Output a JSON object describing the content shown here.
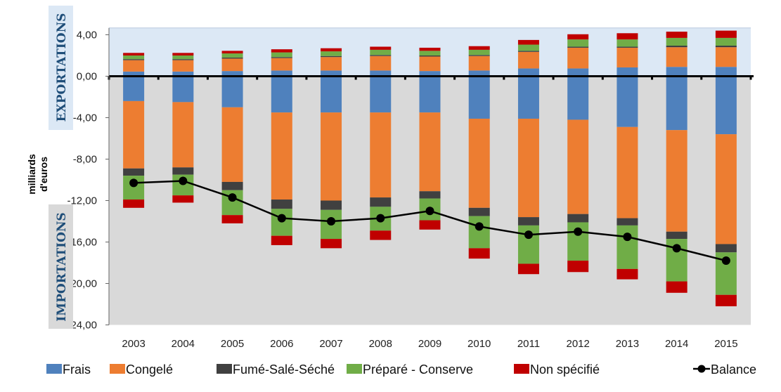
{
  "chart_data": {
    "type": "bar",
    "ylabel": [
      "milliards",
      "d'euros"
    ],
    "side_labels": {
      "top": "EXPORTATIONS",
      "bottom": "IMPORTATIONS"
    },
    "ylim": [
      -24,
      5
    ],
    "yticks": [
      {
        "v": 4,
        "label": "4,00"
      },
      {
        "v": 0,
        "label": "0,00"
      },
      {
        "v": -4,
        "label": "-4,00"
      },
      {
        "v": -8,
        "label": "-8,00"
      },
      {
        "v": -12,
        "label": "-12,00"
      },
      {
        "v": -16,
        "label": "-16,00"
      },
      {
        "v": -20,
        "label": "-20,00"
      },
      {
        "v": -24,
        "label": "-24,00"
      }
    ],
    "categories": [
      "2003",
      "2004",
      "2005",
      "2006",
      "2007",
      "2008",
      "2009",
      "2010",
      "2011",
      "2012",
      "2013",
      "2014",
      "2015"
    ],
    "series": [
      {
        "name": "Frais",
        "color": "#4f81bd",
        "exports": [
          0.45,
          0.45,
          0.5,
          0.55,
          0.55,
          0.55,
          0.5,
          0.55,
          0.75,
          0.75,
          0.85,
          0.9,
          0.9
        ],
        "imports": [
          2.4,
          2.5,
          3.0,
          3.5,
          3.5,
          3.5,
          3.5,
          4.1,
          4.1,
          4.2,
          4.9,
          5.2,
          5.6
        ]
      },
      {
        "name": "Congelé",
        "color": "#ed7d31",
        "exports": [
          1.1,
          1.1,
          1.2,
          1.2,
          1.3,
          1.4,
          1.4,
          1.4,
          1.6,
          2.0,
          1.9,
          1.9,
          1.9
        ]
      },
      {
        "name": "Fumé-Salé-Séché",
        "color": "#404040",
        "exports": [
          0.1,
          0.1,
          0.1,
          0.1,
          0.1,
          0.1,
          0.1,
          0.1,
          0.1,
          0.1,
          0.1,
          0.15,
          0.15
        ],
        "imports": [
          0.7,
          0.7,
          0.8,
          0.9,
          0.9,
          0.9,
          0.7,
          0.8,
          0.8,
          0.8,
          0.7,
          0.7,
          0.8
        ]
      },
      {
        "name": "Préparé - Conserve",
        "color": "#70ad47",
        "exports": [
          0.35,
          0.35,
          0.4,
          0.45,
          0.45,
          0.5,
          0.45,
          0.5,
          0.6,
          0.7,
          0.7,
          0.75,
          0.75
        ],
        "imports": [
          2.3,
          2.0,
          2.4,
          2.6,
          2.8,
          2.3,
          2.1,
          3.1,
          3.7,
          3.7,
          4.2,
          4.1,
          4.1
        ]
      },
      {
        "name": "Non spécifié",
        "color": "#c00000",
        "exports": [
          0.25,
          0.25,
          0.25,
          0.3,
          0.3,
          0.3,
          0.3,
          0.35,
          0.45,
          0.5,
          0.6,
          0.6,
          0.7
        ],
        "imports": [
          0.8,
          0.7,
          0.8,
          0.9,
          0.9,
          0.9,
          0.9,
          1.0,
          1.0,
          1.1,
          1.0,
          1.1,
          1.1
        ]
      }
    ],
    "congele_import_bottom": [
      -8.9,
      -8.8,
      -10.2,
      -11.9,
      -12.0,
      -11.7,
      -11.1,
      -12.7,
      -13.6,
      -13.3,
      -13.7,
      -15.0,
      -16.2
    ],
    "balance": {
      "name": "Balance",
      "color": "#000000",
      "values": [
        -10.3,
        -10.1,
        -11.7,
        -13.7,
        -14.0,
        -13.7,
        -13.0,
        -14.5,
        -15.3,
        -15.0,
        -15.5,
        -16.6,
        -17.8
      ]
    },
    "legend_position": "bottom"
  }
}
